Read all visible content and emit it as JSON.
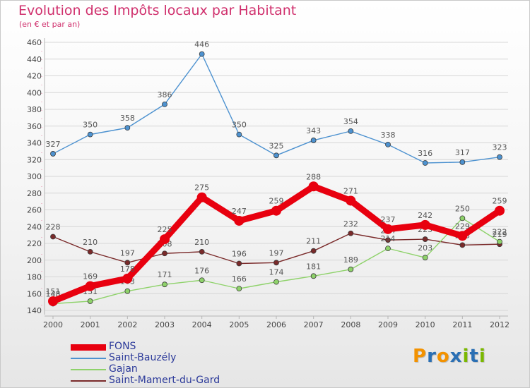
{
  "header": {
    "title": "Evolution des Impôts locaux par Habitant",
    "subtitle": "(en € et par an)"
  },
  "logo": {
    "letters": [
      "P",
      "r",
      "o",
      "x",
      "i",
      "t",
      "i"
    ],
    "colors": [
      "#f39200",
      "#2a6fb4",
      "#f39200",
      "#2a6fb4",
      "#7ab800",
      "#2a6fb4",
      "#7ab800"
    ]
  },
  "chart_data": {
    "type": "line",
    "title": "Evolution des Impôts locaux par Habitant",
    "subtitle": "(en € et par an)",
    "xlabel": "",
    "ylabel": "",
    "x": [
      2000,
      2001,
      2002,
      2003,
      2004,
      2005,
      2006,
      2007,
      2008,
      2009,
      2010,
      2011,
      2012
    ],
    "ylim": [
      140,
      460
    ],
    "yticks": [
      140,
      160,
      180,
      200,
      220,
      240,
      260,
      280,
      300,
      320,
      340,
      360,
      380,
      400,
      420,
      440,
      460
    ],
    "grid": "horizontal",
    "legend_position": "bottom-left",
    "series": [
      {
        "name": "Saint-Mamert-du-Gard",
        "color": "#7a2a2a",
        "width": "thin",
        "values": [
          228,
          210,
          197,
          208,
          210,
          196,
          197,
          211,
          232,
          224,
          225,
          218,
          219
        ],
        "labels": [
          "228",
          "210",
          "197",
          "208",
          "210",
          "196",
          "197",
          "211",
          "232",
          "224",
          "225",
          "218",
          "219"
        ]
      },
      {
        "name": "Gajan",
        "color": "#8ed26a",
        "width": "thin",
        "values": [
          148,
          151,
          163,
          171,
          176,
          166,
          174,
          181,
          189,
          214,
          203,
          250,
          222
        ],
        "labels": [
          "148",
          "151",
          "163",
          "171",
          "176",
          "166",
          "174",
          "181",
          "189",
          "214",
          "203",
          "250",
          "222"
        ]
      },
      {
        "name": "Saint-Bauzély",
        "color": "#4d92d0",
        "width": "thin",
        "values": [
          327,
          350,
          358,
          386,
          446,
          350,
          325,
          343,
          354,
          338,
          316,
          317,
          323
        ],
        "labels": [
          "327",
          "350",
          "358",
          "386",
          "446",
          "350",
          "325",
          "343",
          "354",
          "338",
          "316",
          "317",
          "323"
        ]
      },
      {
        "name": "FONS",
        "color": "#e8000f",
        "width": "thick",
        "values": [
          151,
          169,
          178,
          225,
          275,
          247,
          259,
          288,
          271,
          237,
          242,
          229,
          259
        ],
        "labels": [
          "151",
          "169",
          "178",
          "225",
          "275",
          "247",
          "259",
          "288",
          "271",
          "237",
          "242",
          "229",
          "259"
        ]
      }
    ],
    "legend": [
      "FONS",
      "Saint-Bauzély",
      "Gajan",
      "Saint-Mamert-du-Gard"
    ]
  }
}
